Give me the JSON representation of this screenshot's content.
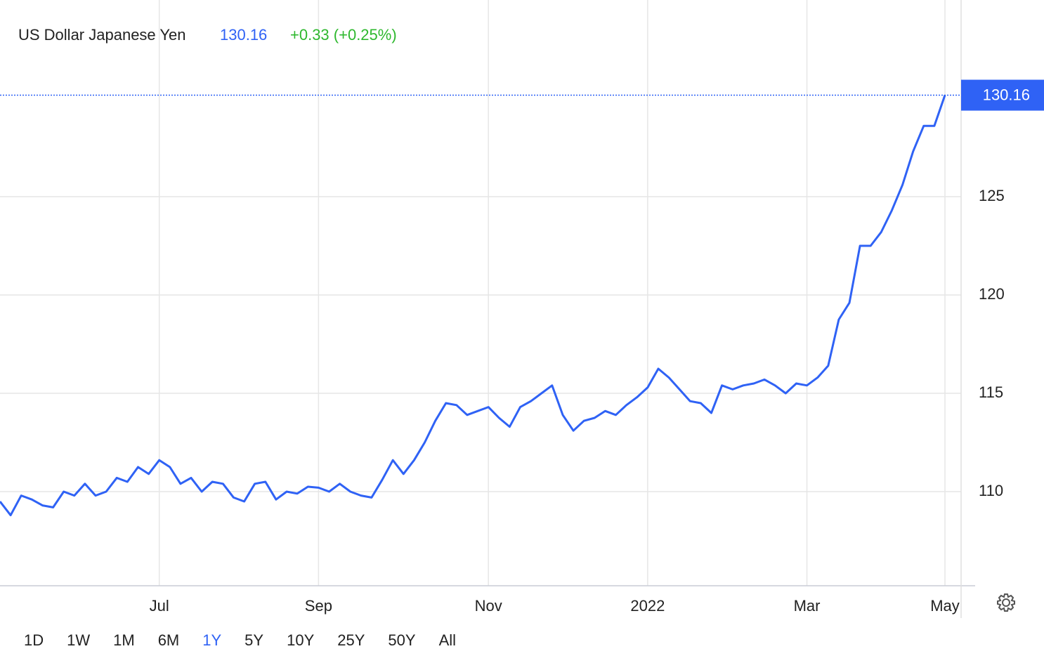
{
  "chart_data": {
    "type": "line",
    "title": "US Dollar Japanese Yen",
    "last_price": 130.16,
    "change": "+0.33 (+0.25%)",
    "price_color": "#2f62f5",
    "change_color": "#2eb82e",
    "categories": [
      null,
      null,
      null,
      null,
      null,
      null,
      null,
      null,
      null,
      null,
      null,
      null,
      null,
      null,
      null,
      "Jul",
      null,
      null,
      null,
      null,
      null,
      null,
      null,
      null,
      null,
      null,
      null,
      null,
      null,
      null,
      "Sep",
      null,
      null,
      null,
      null,
      null,
      null,
      null,
      null,
      null,
      null,
      null,
      null,
      null,
      null,
      null,
      "Nov",
      null,
      null,
      null,
      null,
      null,
      null,
      null,
      null,
      null,
      null,
      null,
      null,
      null,
      null,
      "2022",
      null,
      null,
      null,
      null,
      null,
      null,
      null,
      null,
      null,
      null,
      null,
      null,
      null,
      null,
      "Mar",
      null,
      null,
      null,
      null,
      null,
      null,
      null,
      null,
      null,
      null,
      null,
      null,
      "May"
    ],
    "series": [
      {
        "name": "USD/JPY",
        "color": "#2f62f5",
        "values": [
          109.5,
          108.8,
          109.8,
          109.6,
          109.3,
          109.2,
          110.0,
          109.8,
          110.4,
          109.8,
          110.0,
          110.7,
          110.5,
          111.25,
          110.9,
          111.6,
          111.25,
          110.4,
          110.7,
          110.0,
          110.5,
          110.4,
          109.7,
          109.5,
          110.4,
          110.5,
          109.6,
          110.0,
          109.9,
          110.25,
          110.2,
          110.0,
          110.4,
          110.0,
          109.8,
          109.7,
          110.6,
          111.6,
          110.9,
          111.6,
          112.5,
          113.6,
          114.5,
          114.4,
          113.9,
          114.1,
          114.3,
          113.75,
          113.3,
          114.3,
          114.6,
          115.0,
          115.4,
          113.9,
          113.1,
          113.6,
          113.75,
          114.1,
          113.9,
          114.4,
          114.8,
          115.3,
          116.25,
          115.8,
          115.2,
          114.6,
          114.5,
          114.0,
          115.4,
          115.2,
          115.4,
          115.5,
          115.7,
          115.4,
          115.0,
          115.5,
          115.4,
          115.8,
          116.4,
          118.75,
          119.6,
          122.5,
          122.5,
          123.2,
          124.3,
          125.6,
          127.3,
          128.6,
          128.6,
          130.16
        ]
      }
    ],
    "ylim": [
      105,
      135
    ],
    "yticks": [
      110,
      115,
      120,
      125
    ],
    "grid": true,
    "ranges": [
      "1D",
      "1W",
      "1M",
      "6M",
      "1Y",
      "5Y",
      "10Y",
      "25Y",
      "50Y",
      "All"
    ],
    "selected_range": "1Y"
  }
}
